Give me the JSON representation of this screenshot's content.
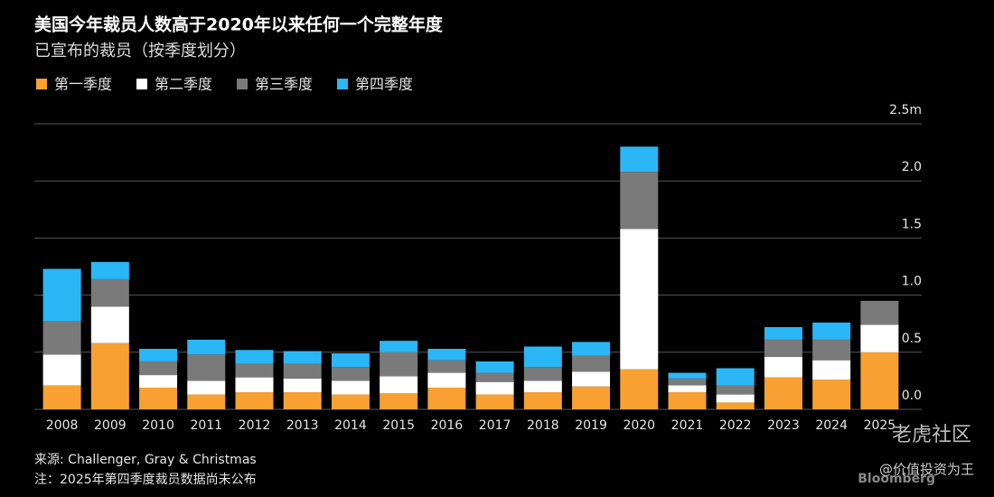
{
  "chart_data": {
    "type": "stacked-bar",
    "title": "美国今年裁员人数高于2020年以来任何一个完整年度",
    "subtitle": "已宣布的裁员（按季度划分）",
    "source": "来源: Challenger, Gray & Christmas",
    "note": "注：2025年第四季度裁员数据尚未公布",
    "brand": "Bloomberg",
    "watermark": "老虎社区",
    "credit": "@价值投资为王",
    "categories": [
      "2008",
      "2009",
      "2010",
      "2011",
      "2012",
      "2013",
      "2014",
      "2015",
      "2016",
      "2017",
      "2018",
      "2019",
      "2020",
      "2021",
      "2022",
      "2023",
      "2024",
      "2025"
    ],
    "series": [
      {
        "name": "第一季度",
        "color": "#f8a031",
        "values": [
          0.21,
          0.58,
          0.19,
          0.13,
          0.15,
          0.15,
          0.13,
          0.14,
          0.19,
          0.13,
          0.15,
          0.2,
          0.35,
          0.15,
          0.06,
          0.28,
          0.26,
          0.5
        ]
      },
      {
        "name": "第二季度",
        "color": "#ffffff",
        "values": [
          0.27,
          0.32,
          0.11,
          0.12,
          0.13,
          0.12,
          0.12,
          0.15,
          0.13,
          0.11,
          0.1,
          0.13,
          1.23,
          0.06,
          0.07,
          0.18,
          0.17,
          0.24
        ]
      },
      {
        "name": "第三季度",
        "color": "#7a7a7a",
        "values": [
          0.29,
          0.24,
          0.12,
          0.23,
          0.12,
          0.13,
          0.12,
          0.21,
          0.11,
          0.08,
          0.12,
          0.14,
          0.5,
          0.06,
          0.08,
          0.15,
          0.18,
          0.21
        ]
      },
      {
        "name": "第四季度",
        "color": "#2bb6f6",
        "values": [
          0.46,
          0.15,
          0.11,
          0.13,
          0.12,
          0.11,
          0.12,
          0.1,
          0.1,
          0.1,
          0.18,
          0.12,
          0.22,
          0.05,
          0.15,
          0.11,
          0.15,
          null
        ]
      }
    ],
    "ylim": [
      0,
      2.5
    ],
    "yticks": [
      {
        "value": 0,
        "label": "0.0"
      },
      0.5,
      {
        "value": 1,
        "label": "1.0"
      },
      1.5,
      {
        "value": 2,
        "label": "2.0"
      },
      {
        "value": 2.5,
        "label": "2.5m"
      }
    ],
    "grid": true
  }
}
